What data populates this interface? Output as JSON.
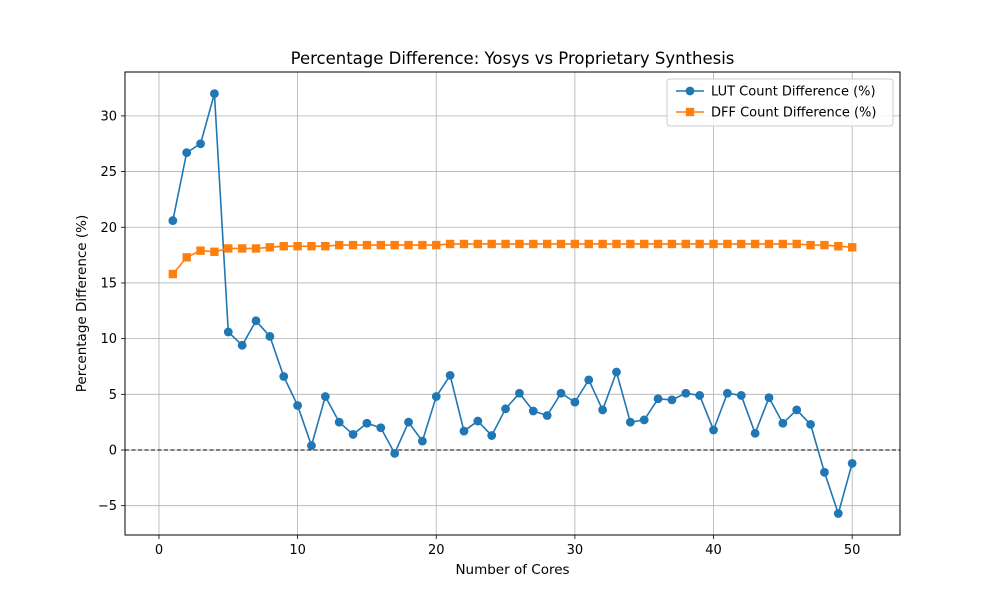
{
  "chart_data": {
    "type": "line",
    "title": "Percentage Difference: Yosys vs Proprietary Synthesis",
    "xlabel": "Number of Cores",
    "ylabel": "Percentage Difference (%)",
    "xlim": [
      -2.45,
      53.45
    ],
    "ylim": [
      -7.63,
      33.94
    ],
    "xticks": [
      0,
      10,
      20,
      30,
      40,
      50
    ],
    "yticks": [
      -5,
      0,
      5,
      10,
      15,
      20,
      25,
      30
    ],
    "grid": true,
    "zero_line": true,
    "legend_position": "top-right",
    "x": [
      1,
      2,
      3,
      4,
      5,
      6,
      7,
      8,
      9,
      10,
      11,
      12,
      13,
      14,
      15,
      16,
      17,
      18,
      19,
      20,
      21,
      22,
      23,
      24,
      25,
      26,
      27,
      28,
      29,
      30,
      31,
      32,
      33,
      34,
      35,
      36,
      37,
      38,
      39,
      40,
      41,
      42,
      43,
      44,
      45,
      46,
      47,
      48,
      49,
      50
    ],
    "series": [
      {
        "name": "LUT Count Difference (%)",
        "color": "#1f77b4",
        "marker": "circle",
        "values": [
          20.6,
          26.7,
          27.5,
          32.0,
          10.6,
          9.4,
          11.6,
          10.2,
          6.6,
          4.0,
          0.4,
          4.8,
          2.5,
          1.4,
          2.4,
          2.0,
          -0.3,
          2.5,
          0.8,
          4.8,
          6.7,
          1.7,
          2.6,
          1.3,
          3.7,
          5.1,
          3.5,
          3.1,
          5.1,
          4.3,
          6.3,
          3.6,
          7.0,
          2.5,
          2.7,
          4.6,
          4.5,
          5.1,
          4.9,
          1.8,
          5.1,
          4.9,
          1.5,
          4.7,
          2.4,
          3.6,
          2.3,
          -2.0,
          -5.7,
          -1.2
        ]
      },
      {
        "name": "DFF Count Difference (%)",
        "color": "#ff7f0e",
        "marker": "square",
        "values": [
          15.8,
          17.3,
          17.9,
          17.8,
          18.1,
          18.1,
          18.1,
          18.2,
          18.3,
          18.3,
          18.3,
          18.3,
          18.4,
          18.4,
          18.4,
          18.4,
          18.4,
          18.4,
          18.4,
          18.4,
          18.5,
          18.5,
          18.5,
          18.5,
          18.5,
          18.5,
          18.5,
          18.5,
          18.5,
          18.5,
          18.5,
          18.5,
          18.5,
          18.5,
          18.5,
          18.5,
          18.5,
          18.5,
          18.5,
          18.5,
          18.5,
          18.5,
          18.5,
          18.5,
          18.5,
          18.5,
          18.4,
          18.4,
          18.3,
          18.2
        ]
      }
    ]
  }
}
